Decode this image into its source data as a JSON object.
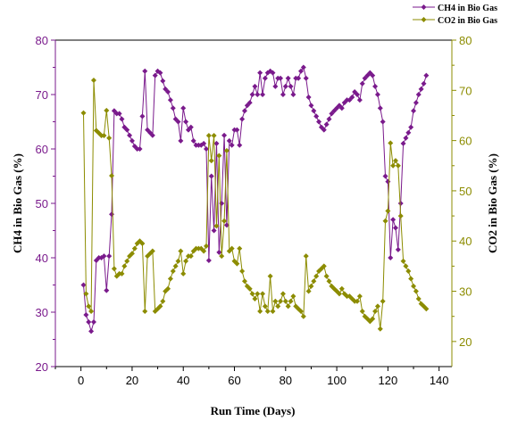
{
  "chart_data": {
    "type": "line",
    "xlabel": "Run Time (Days)",
    "ylabel_left": "CH4 in Bio Gas (%)",
    "ylabel_right": "CO2 in Bio Gas (%)",
    "xlim": [
      -10,
      145
    ],
    "ylim_left": [
      20,
      80
    ],
    "ylim_right": [
      15,
      80
    ],
    "x_ticks": [
      0,
      20,
      40,
      60,
      80,
      100,
      120,
      140
    ],
    "y_ticks_left": [
      20,
      30,
      40,
      50,
      60,
      70,
      80
    ],
    "y_ticks_right": [
      20,
      30,
      40,
      50,
      60,
      70,
      80
    ],
    "grid": false,
    "legend_position": "top-right",
    "series": [
      {
        "name": "CH4 in Bio Gas",
        "color": "#7a1a8c",
        "marker": "diamond",
        "axis": "left",
        "points": [
          [
            1,
            35
          ],
          [
            2,
            29.5
          ],
          [
            3,
            28.2
          ],
          [
            4,
            26.5
          ],
          [
            5,
            28.2
          ],
          [
            6,
            39.5
          ],
          [
            7,
            40
          ],
          [
            8,
            40
          ],
          [
            9,
            40.3
          ],
          [
            10,
            34
          ],
          [
            11,
            40.3
          ],
          [
            12,
            48
          ],
          [
            13,
            67
          ],
          [
            14,
            66.5
          ],
          [
            15,
            66.5
          ],
          [
            16,
            65.5
          ],
          [
            17,
            64
          ],
          [
            18,
            63.5
          ],
          [
            19,
            62.5
          ],
          [
            20,
            61.5
          ],
          [
            21,
            60.5
          ],
          [
            22,
            60
          ],
          [
            23,
            60
          ],
          [
            24,
            66
          ],
          [
            25,
            74.3
          ],
          [
            26,
            63.5
          ],
          [
            27,
            63
          ],
          [
            28,
            62.5
          ],
          [
            29,
            73.5
          ],
          [
            30,
            74.3
          ],
          [
            31,
            74
          ],
          [
            32,
            72.5
          ],
          [
            33,
            71
          ],
          [
            34,
            70.5
          ],
          [
            35,
            69
          ],
          [
            36,
            67.5
          ],
          [
            37,
            65.5
          ],
          [
            38,
            65
          ],
          [
            39,
            61.5
          ],
          [
            40,
            67.5
          ],
          [
            41,
            65
          ],
          [
            42,
            63.5
          ],
          [
            43,
            64
          ],
          [
            44,
            61.5
          ],
          [
            45,
            60.7
          ],
          [
            46,
            60.7
          ],
          [
            47,
            60.7
          ],
          [
            48,
            61
          ],
          [
            49,
            60
          ],
          [
            50,
            39.5
          ],
          [
            51,
            55
          ],
          [
            52,
            45
          ],
          [
            53,
            61
          ],
          [
            54,
            41
          ],
          [
            55,
            50
          ],
          [
            56,
            62.5
          ],
          [
            57,
            46
          ],
          [
            58,
            61.5
          ],
          [
            59,
            60.7
          ],
          [
            60,
            63.5
          ],
          [
            61,
            63.5
          ],
          [
            62,
            60.7
          ],
          [
            63,
            65.5
          ],
          [
            64,
            67
          ],
          [
            65,
            68
          ],
          [
            66,
            68.5
          ],
          [
            67,
            70
          ],
          [
            68,
            71.5
          ],
          [
            69,
            70
          ],
          [
            70,
            74
          ],
          [
            71,
            70
          ],
          [
            72,
            73
          ],
          [
            73,
            74
          ],
          [
            74,
            74.3
          ],
          [
            75,
            74
          ],
          [
            76,
            71.5
          ],
          [
            77,
            73
          ],
          [
            78,
            73
          ],
          [
            79,
            70
          ],
          [
            80,
            71.5
          ],
          [
            81,
            73
          ],
          [
            82,
            71.5
          ],
          [
            83,
            70
          ],
          [
            84,
            73
          ],
          [
            85,
            73
          ],
          [
            86,
            74.3
          ],
          [
            87,
            75
          ],
          [
            88,
            73
          ],
          [
            89,
            69.5
          ],
          [
            90,
            68
          ],
          [
            91,
            67
          ],
          [
            92,
            66
          ],
          [
            93,
            65
          ],
          [
            94,
            64
          ],
          [
            95,
            63.5
          ],
          [
            96,
            64.5
          ],
          [
            97,
            65.5
          ],
          [
            98,
            66.5
          ],
          [
            99,
            67
          ],
          [
            100,
            67.5
          ],
          [
            101,
            68
          ],
          [
            102,
            67.5
          ],
          [
            103,
            68.5
          ],
          [
            104,
            69
          ],
          [
            105,
            69
          ],
          [
            106,
            69.5
          ],
          [
            107,
            70.5
          ],
          [
            108,
            70
          ],
          [
            109,
            69
          ],
          [
            110,
            72
          ],
          [
            111,
            73
          ],
          [
            112,
            73.5
          ],
          [
            113,
            74
          ],
          [
            114,
            73.5
          ],
          [
            115,
            71.5
          ],
          [
            116,
            70
          ],
          [
            117,
            67.5
          ],
          [
            118,
            65
          ],
          [
            119,
            55
          ],
          [
            120,
            54
          ],
          [
            121,
            40
          ],
          [
            122,
            47
          ],
          [
            123,
            45.5
          ],
          [
            124,
            41.5
          ],
          [
            125,
            50
          ],
          [
            126,
            61
          ],
          [
            127,
            62
          ],
          [
            128,
            63
          ],
          [
            129,
            64
          ],
          [
            130,
            67
          ],
          [
            131,
            68.5
          ],
          [
            132,
            70
          ],
          [
            133,
            71
          ],
          [
            134,
            72
          ],
          [
            135,
            73.5
          ]
        ]
      },
      {
        "name": "CO2 in Bio Gas",
        "color": "#8c8c00",
        "marker": "diamond",
        "axis": "right",
        "points": [
          [
            1,
            65.5
          ],
          [
            2,
            29.5
          ],
          [
            3,
            27
          ],
          [
            4,
            26
          ],
          [
            5,
            72
          ],
          [
            6,
            62
          ],
          [
            7,
            61.5
          ],
          [
            8,
            61
          ],
          [
            9,
            61
          ],
          [
            10,
            66
          ],
          [
            11,
            60.5
          ],
          [
            12,
            53
          ],
          [
            13,
            34.5
          ],
          [
            14,
            33
          ],
          [
            15,
            33.5
          ],
          [
            16,
            33.5
          ],
          [
            17,
            35
          ],
          [
            18,
            36
          ],
          [
            19,
            37
          ],
          [
            20,
            37.5
          ],
          [
            21,
            38.5
          ],
          [
            22,
            39.5
          ],
          [
            23,
            40
          ],
          [
            24,
            39.5
          ],
          [
            25,
            26
          ],
          [
            26,
            37
          ],
          [
            27,
            37.5
          ],
          [
            28,
            38
          ],
          [
            29,
            26
          ],
          [
            30,
            26.5
          ],
          [
            31,
            27
          ],
          [
            32,
            28
          ],
          [
            33,
            30
          ],
          [
            34,
            30.5
          ],
          [
            35,
            32.5
          ],
          [
            36,
            34
          ],
          [
            37,
            35
          ],
          [
            38,
            36
          ],
          [
            39,
            38
          ],
          [
            40,
            33.5
          ],
          [
            41,
            36
          ],
          [
            42,
            37
          ],
          [
            43,
            37
          ],
          [
            44,
            38
          ],
          [
            45,
            38.5
          ],
          [
            46,
            38.5
          ],
          [
            47,
            38.5
          ],
          [
            48,
            38
          ],
          [
            49,
            39
          ],
          [
            50,
            61
          ],
          [
            51,
            56
          ],
          [
            52,
            61
          ],
          [
            53,
            43
          ],
          [
            54,
            57
          ],
          [
            55,
            37
          ],
          [
            56,
            44
          ],
          [
            57,
            58
          ],
          [
            58,
            38
          ],
          [
            59,
            38.5
          ],
          [
            60,
            36
          ],
          [
            61,
            35.5
          ],
          [
            62,
            38.5
          ],
          [
            63,
            34
          ],
          [
            64,
            32
          ],
          [
            65,
            31
          ],
          [
            66,
            30.5
          ],
          [
            67,
            29.5
          ],
          [
            68,
            28.5
          ],
          [
            69,
            29.5
          ],
          [
            70,
            26
          ],
          [
            71,
            29.5
          ],
          [
            72,
            27
          ],
          [
            73,
            26
          ],
          [
            74,
            33
          ],
          [
            75,
            26
          ],
          [
            76,
            28
          ],
          [
            77,
            27
          ],
          [
            78,
            28
          ],
          [
            79,
            29.5
          ],
          [
            80,
            28
          ],
          [
            81,
            27
          ],
          [
            82,
            28
          ],
          [
            83,
            29
          ],
          [
            84,
            27
          ],
          [
            85,
            26.5
          ],
          [
            86,
            26
          ],
          [
            87,
            25
          ],
          [
            88,
            37
          ],
          [
            89,
            30
          ],
          [
            90,
            31
          ],
          [
            91,
            32
          ],
          [
            92,
            33
          ],
          [
            93,
            34
          ],
          [
            94,
            34.5
          ],
          [
            95,
            35
          ],
          [
            96,
            33
          ],
          [
            97,
            32
          ],
          [
            98,
            31
          ],
          [
            99,
            30.5
          ],
          [
            100,
            30
          ],
          [
            101,
            29.5
          ],
          [
            102,
            30.5
          ],
          [
            103,
            29.5
          ],
          [
            104,
            29
          ],
          [
            105,
            29
          ],
          [
            106,
            28.5
          ],
          [
            107,
            28
          ],
          [
            108,
            28
          ],
          [
            109,
            29
          ],
          [
            110,
            26
          ],
          [
            111,
            25
          ],
          [
            112,
            24.5
          ],
          [
            113,
            24
          ],
          [
            114,
            24.5
          ],
          [
            115,
            26
          ],
          [
            116,
            27
          ],
          [
            117,
            22.5
          ],
          [
            118,
            28
          ],
          [
            119,
            44
          ],
          [
            120,
            46
          ],
          [
            121,
            59.5
          ],
          [
            122,
            55
          ],
          [
            123,
            56
          ],
          [
            124,
            55
          ],
          [
            125,
            45
          ],
          [
            126,
            36
          ],
          [
            127,
            35
          ],
          [
            128,
            34
          ],
          [
            129,
            32.5
          ],
          [
            130,
            31
          ],
          [
            131,
            30
          ],
          [
            132,
            28.5
          ],
          [
            133,
            27.5
          ],
          [
            134,
            27
          ],
          [
            135,
            26.5
          ]
        ]
      }
    ]
  }
}
